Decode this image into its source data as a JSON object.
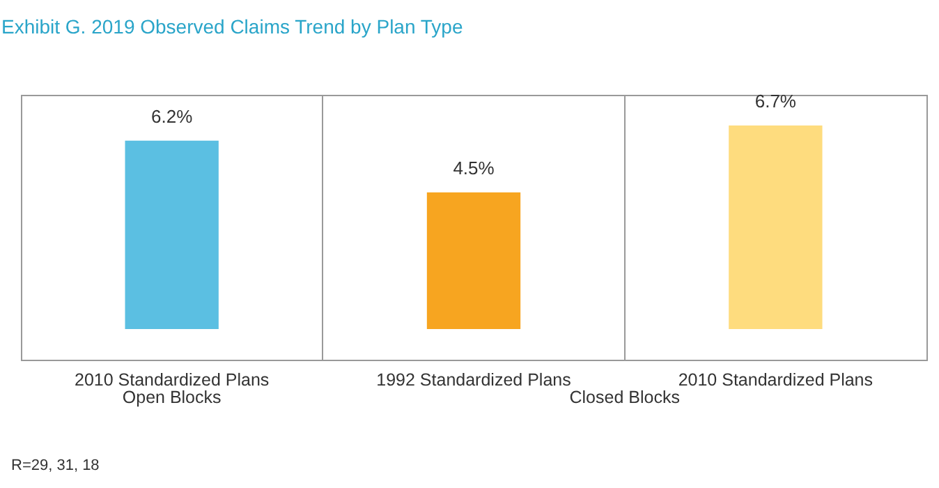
{
  "chart_data": {
    "type": "bar",
    "title": "Exhibit G. 2019 Observed Claims Trend by Plan Type",
    "categories": [
      "2010 Standardized Plans",
      "1992 Standardized Plans",
      "2010 Standardized Plans"
    ],
    "values": [
      6.2,
      4.5,
      6.7
    ],
    "colors": [
      "#5bbfe2",
      "#f7a520",
      "#fedc7e"
    ],
    "value_labels": [
      "6.2%",
      "4.5%",
      "6.7%"
    ],
    "grid": "x",
    "annotations": [
      "Open Blocks",
      "Closed Blocks",
      "R=29, 31, 18"
    ]
  }
}
